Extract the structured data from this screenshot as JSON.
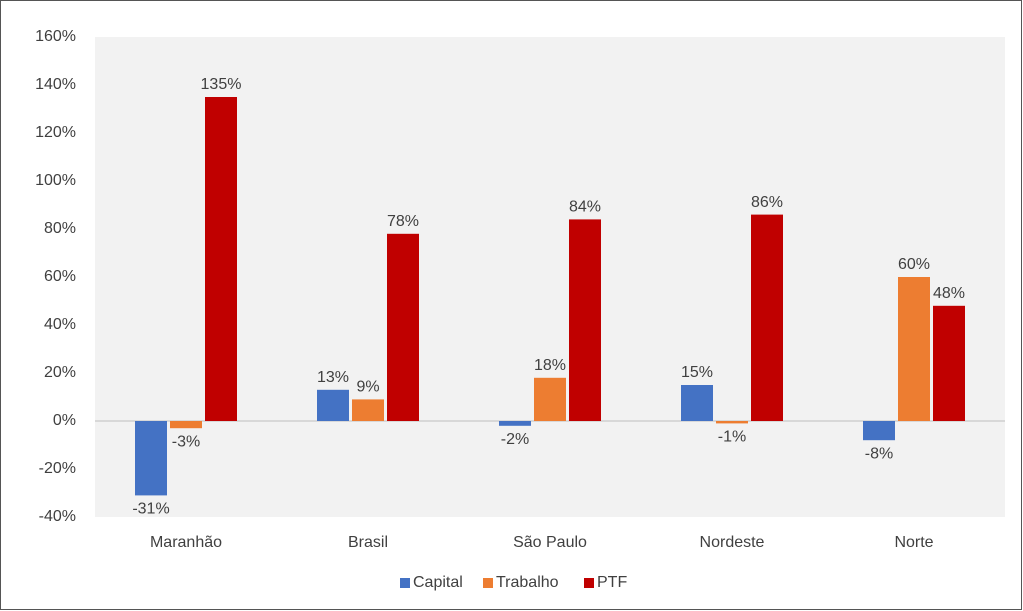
{
  "chart_data": {
    "type": "bar",
    "categories": [
      "Maranhão",
      "Brasil",
      "São Paulo",
      "Nordeste",
      "Norte"
    ],
    "series": [
      {
        "name": "Capital",
        "color": "#4472c4",
        "values": [
          -31,
          13,
          -2,
          15,
          -8
        ],
        "value_labels": [
          "-31%",
          "13%",
          "-2%",
          "15%",
          "-8%"
        ]
      },
      {
        "name": "Trabalho",
        "color": "#ed7d31",
        "values": [
          -3,
          9,
          18,
          -1,
          60
        ],
        "value_labels": [
          "-3%",
          "9%",
          "18%",
          "-1%",
          "60%"
        ]
      },
      {
        "name": "PTF",
        "color": "#c00000",
        "values": [
          135,
          78,
          84,
          86,
          48
        ],
        "value_labels": [
          "135%",
          "78%",
          "84%",
          "86%",
          "48%"
        ]
      }
    ],
    "ylim": [
      -40,
      160
    ],
    "yticks": [
      {
        "value": -40,
        "label": "-40%"
      },
      {
        "value": -20,
        "label": "-20%"
      },
      {
        "value": 0,
        "label": "0%"
      },
      {
        "value": 20,
        "label": "20%"
      },
      {
        "value": 40,
        "label": "40%"
      },
      {
        "value": 60,
        "label": "60%"
      },
      {
        "value": 80,
        "label": "80%"
      },
      {
        "value": 100,
        "label": "100%"
      },
      {
        "value": 120,
        "label": "120%"
      },
      {
        "value": 140,
        "label": "140%"
      },
      {
        "value": 160,
        "label": "160%"
      }
    ],
    "grid": false,
    "legend": "bottom"
  }
}
